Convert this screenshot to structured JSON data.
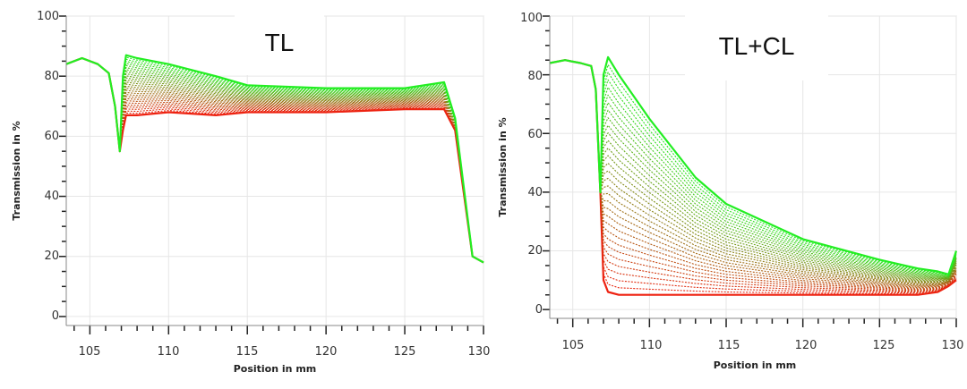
{
  "chart_data": [
    {
      "type": "line",
      "title": "TL",
      "xlabel": "Position in mm",
      "ylabel": "Transmission in %",
      "xlim": [
        103.5,
        130
      ],
      "ylim": [
        -3,
        100
      ],
      "x_ticks": [
        "105",
        "110",
        "115",
        "120",
        "125",
        "130"
      ],
      "y_ticks": [
        "0",
        "20",
        "40",
        "60",
        "80",
        "100"
      ],
      "grid": true,
      "legend": "none",
      "color_gradient": [
        "#ee2211",
        "#22ee22"
      ],
      "curve_count": 30,
      "series_bounds": [
        {
          "name": "",
          "x": [
            103.5,
            104.5,
            105.5,
            106.2,
            106.6,
            106.9,
            107.1,
            107.3,
            108,
            110,
            113,
            115,
            120,
            125,
            127.5,
            128.2,
            129.3,
            130
          ],
          "values": [
            84,
            86,
            84,
            81,
            70,
            55,
            62,
            67,
            67,
            68,
            67,
            68,
            68,
            69,
            69,
            62,
            20,
            18
          ]
        },
        {
          "name": "",
          "x": [
            103.5,
            104.5,
            105.5,
            106.2,
            106.6,
            106.9,
            107.1,
            107.3,
            108,
            110,
            113,
            115,
            120,
            125,
            127.5,
            128.2,
            129.3,
            130
          ],
          "values": [
            84,
            86,
            84,
            81,
            70,
            55,
            80,
            87,
            86,
            84,
            80,
            77,
            76,
            76,
            78,
            66,
            20,
            18
          ]
        }
      ]
    },
    {
      "type": "line",
      "title": "TL+CL",
      "xlabel": "Position in mm",
      "ylabel": "Transmission in %",
      "xlim": [
        103.5,
        130
      ],
      "ylim": [
        -3,
        100
      ],
      "x_ticks": [
        "105",
        "110",
        "115",
        "120",
        "125",
        "130"
      ],
      "y_ticks": [
        "0",
        "20",
        "40",
        "60",
        "80",
        "100"
      ],
      "grid": true,
      "legend": "none",
      "color_gradient": [
        "#ee2211",
        "#22ee22"
      ],
      "curve_count": 32,
      "series_bounds": [
        {
          "name": "",
          "x": [
            103.5,
            104.5,
            105.5,
            106.2,
            106.5,
            106.8,
            107.0,
            107.3,
            108,
            110,
            113,
            115,
            120,
            125,
            127.5,
            128.8,
            129.5,
            130
          ],
          "values": [
            84,
            85,
            84,
            83,
            75,
            40,
            10,
            6,
            5,
            5,
            5,
            5,
            5,
            5,
            5,
            6,
            8,
            10
          ]
        },
        {
          "name": "",
          "x": [
            103.5,
            104.5,
            105.5,
            106.2,
            106.5,
            106.8,
            107.0,
            107.3,
            108,
            110,
            113,
            115,
            120,
            125,
            127.5,
            128.8,
            129.5,
            130
          ],
          "values": [
            84,
            85,
            84,
            83,
            75,
            40,
            80,
            86,
            80,
            65,
            45,
            36,
            24,
            17,
            14,
            13,
            12,
            20
          ]
        }
      ]
    }
  ]
}
